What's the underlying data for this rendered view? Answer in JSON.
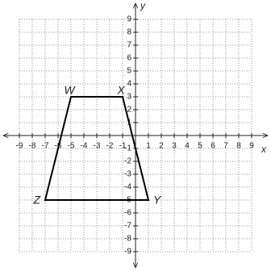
{
  "chart_data": {
    "type": "polygon",
    "xlabel": "x",
    "ylabel": "y",
    "xlim": [
      -10,
      10
    ],
    "ylim": [
      -10,
      10
    ],
    "xticks": [
      -9,
      -8,
      -7,
      -6,
      -5,
      -4,
      -3,
      -2,
      -1,
      1,
      2,
      3,
      4,
      5,
      6,
      7,
      8,
      9
    ],
    "yticks": [
      -9,
      -8,
      -7,
      -6,
      -5,
      -4,
      -3,
      -2,
      -1,
      1,
      2,
      3,
      4,
      5,
      6,
      7,
      8,
      9
    ],
    "grid": true,
    "color": "#000000",
    "x": [
      -5,
      -1,
      1,
      -7
    ],
    "values": [
      3,
      3,
      -5,
      -5
    ],
    "point_labels": [
      "W",
      "X",
      "Y",
      "Z"
    ]
  }
}
